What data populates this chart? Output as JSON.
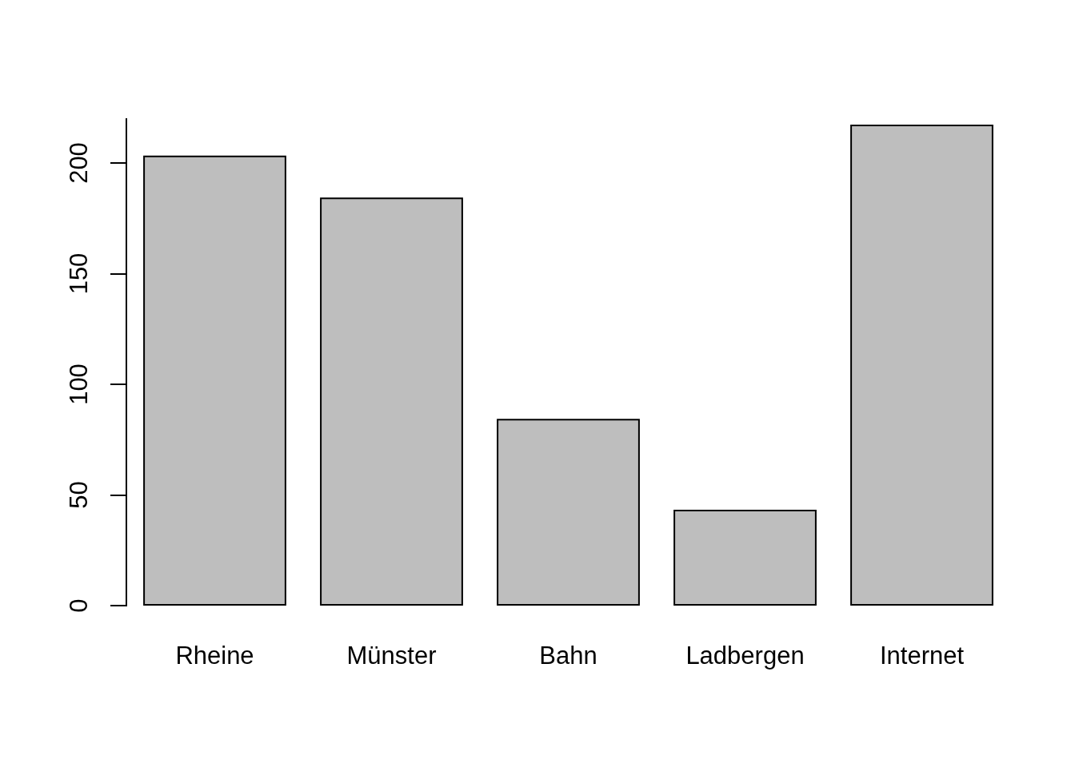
{
  "chart_data": {
    "type": "bar",
    "categories": [
      "Rheine",
      "Münster",
      "Bahn",
      "Ladbergen",
      "Internet"
    ],
    "values": [
      203,
      184,
      84,
      43,
      217
    ],
    "color": "#bebebe",
    "ylim": [
      0,
      220
    ],
    "yticks": [
      0,
      50,
      100,
      150,
      200
    ]
  }
}
